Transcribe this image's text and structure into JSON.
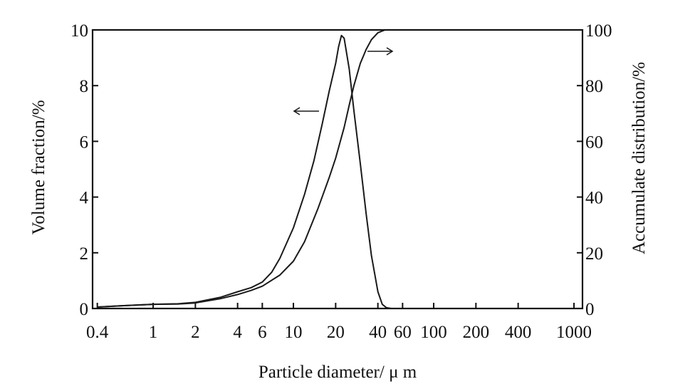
{
  "chart_data": {
    "type": "line",
    "xlabel": "Particle diameter/ μ m",
    "ylabel_left": "Volume fraction/%",
    "ylabel_right": "Accumulate distribution/%",
    "x_scale": "log",
    "xlim": [
      0.37,
      1150
    ],
    "ylim_left": [
      0,
      10
    ],
    "ylim_right": [
      0,
      100
    ],
    "x_ticks": [
      0.4,
      1,
      2,
      4,
      6,
      10,
      20,
      40,
      60,
      100,
      200,
      400,
      1000
    ],
    "x_tick_labels": [
      "0.4",
      "1",
      "2",
      "4",
      "6",
      "10",
      "20",
      "40",
      "60",
      "100",
      "200",
      "400",
      "1000"
    ],
    "y_left_ticks": [
      0,
      2,
      4,
      6,
      8,
      10
    ],
    "y_left_tick_labels": [
      "0",
      "2",
      "4",
      "6",
      "8",
      "10"
    ],
    "y_right_ticks": [
      0,
      20,
      40,
      60,
      80,
      100
    ],
    "y_right_tick_labels": [
      "0",
      "20",
      "40",
      "60",
      "80",
      "100"
    ],
    "grid": false,
    "series": [
      {
        "axis": "left",
        "x": [
          0.4,
          0.6,
          1,
          1.5,
          2,
          3,
          4,
          5,
          6,
          7,
          8,
          10,
          12,
          14,
          16,
          18,
          20,
          21,
          22,
          23,
          25,
          27,
          30,
          33,
          36,
          40,
          43,
          46,
          50
        ],
        "y": [
          0.05,
          0.1,
          0.15,
          0.17,
          0.22,
          0.4,
          0.6,
          0.75,
          0.95,
          1.3,
          1.8,
          2.9,
          4.1,
          5.3,
          6.6,
          7.8,
          8.8,
          9.4,
          9.8,
          9.7,
          8.6,
          7.1,
          5.2,
          3.4,
          1.9,
          0.6,
          0.15,
          0.03,
          0.0
        ]
      },
      {
        "axis": "right",
        "x": [
          0.4,
          0.6,
          1,
          1.5,
          2,
          3,
          4,
          5,
          6,
          8,
          10,
          12,
          15,
          18,
          20,
          23,
          25,
          27,
          30,
          33,
          36,
          40,
          45,
          50,
          60,
          80,
          100,
          200,
          500,
          1000
        ],
        "y": [
          0.5,
          1,
          1.5,
          1.6,
          2,
          3.5,
          5,
          6.5,
          8,
          12,
          17,
          24,
          36,
          47,
          54,
          65,
          73,
          80,
          88,
          93,
          96.5,
          99,
          100,
          100,
          100,
          100,
          100,
          100,
          100,
          100
        ]
      }
    ]
  }
}
